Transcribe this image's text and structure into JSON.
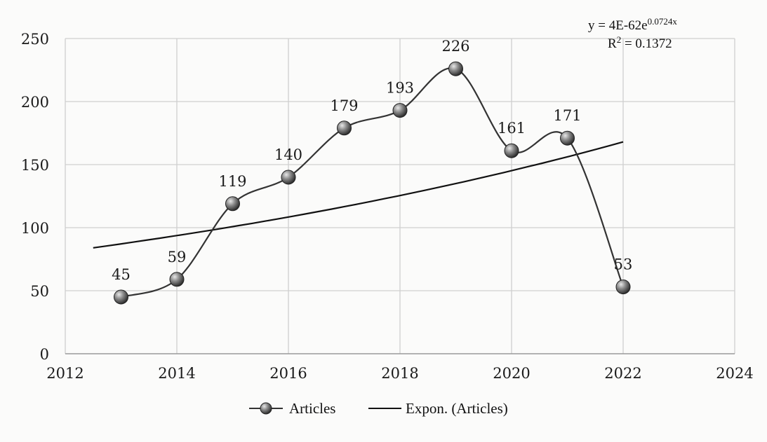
{
  "chart_data": {
    "type": "line",
    "x": [
      2013,
      2014,
      2015,
      2016,
      2017,
      2018,
      2019,
      2020,
      2021,
      2022
    ],
    "series": [
      {
        "name": "Articles",
        "values": [
          45,
          59,
          119,
          140,
          179,
          193,
          226,
          161,
          171,
          53
        ],
        "marker": "sphere",
        "smooth": true,
        "color": "#333333"
      },
      {
        "name": "Expon. (Articles)",
        "trend_start": [
          2012.5,
          84
        ],
        "trend_end": [
          2022,
          168
        ],
        "color": "#111111"
      }
    ],
    "x_ticks": [
      "2012",
      "2014",
      "2016",
      "2018",
      "2020",
      "2022",
      "2024"
    ],
    "y_ticks": [
      "0",
      "50",
      "100",
      "150",
      "200",
      "250"
    ],
    "xlim": [
      2012,
      2024
    ],
    "ylim": [
      0,
      250
    ],
    "grid": {
      "vertical": true,
      "horizontal": true
    },
    "equation_line1": "y = 4E-62e",
    "equation_exp": "0.0724x",
    "r2_prefix": "R",
    "r2_sup": "2",
    "r2_value": " = 0.1372",
    "legend_position": "bottom",
    "title": "",
    "xlabel": "",
    "ylabel": ""
  }
}
